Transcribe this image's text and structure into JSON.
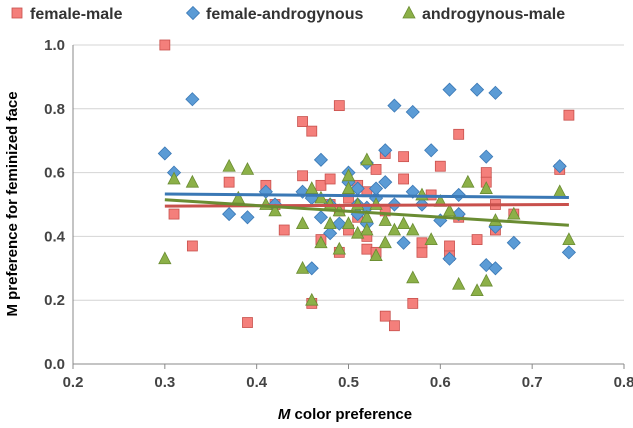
{
  "chart_data": {
    "type": "scatter",
    "title": "",
    "xlabel_italic": "M",
    "xlabel_rest": " color preference",
    "ylabel": "M preference for feminized face",
    "xlim": [
      0.2,
      0.8
    ],
    "ylim": [
      0.0,
      1.0
    ],
    "xticks": [
      "0.2",
      "0.3",
      "0.4",
      "0.5",
      "0.6",
      "0.7",
      "0.8"
    ],
    "yticks": [
      "0.0",
      "0.2",
      "0.4",
      "0.6",
      "0.8",
      "1.0"
    ],
    "legend_position": "top",
    "series": [
      {
        "name": "female-male",
        "color": "#f47f7b",
        "stroke": "#c8504c",
        "marker": "square",
        "trend": [
          0.495,
          0.5
        ],
        "points": [
          [
            0.3,
            1.0
          ],
          [
            0.31,
            0.47
          ],
          [
            0.33,
            0.37
          ],
          [
            0.37,
            0.57
          ],
          [
            0.39,
            0.13
          ],
          [
            0.41,
            0.56
          ],
          [
            0.42,
            0.5
          ],
          [
            0.43,
            0.42
          ],
          [
            0.45,
            0.76
          ],
          [
            0.45,
            0.59
          ],
          [
            0.46,
            0.73
          ],
          [
            0.46,
            0.19
          ],
          [
            0.47,
            0.56
          ],
          [
            0.47,
            0.39
          ],
          [
            0.48,
            0.58
          ],
          [
            0.48,
            0.5
          ],
          [
            0.49,
            0.81
          ],
          [
            0.49,
            0.48
          ],
          [
            0.49,
            0.35
          ],
          [
            0.5,
            0.52
          ],
          [
            0.5,
            0.42
          ],
          [
            0.51,
            0.56
          ],
          [
            0.51,
            0.46
          ],
          [
            0.52,
            0.54
          ],
          [
            0.52,
            0.4
          ],
          [
            0.52,
            0.36
          ],
          [
            0.53,
            0.61
          ],
          [
            0.53,
            0.35
          ],
          [
            0.54,
            0.66
          ],
          [
            0.54,
            0.15
          ],
          [
            0.54,
            0.48
          ],
          [
            0.55,
            0.12
          ],
          [
            0.56,
            0.58
          ],
          [
            0.56,
            0.65
          ],
          [
            0.57,
            0.19
          ],
          [
            0.58,
            0.35
          ],
          [
            0.58,
            0.38
          ],
          [
            0.59,
            0.53
          ],
          [
            0.6,
            0.62
          ],
          [
            0.61,
            0.34
          ],
          [
            0.61,
            0.37
          ],
          [
            0.62,
            0.72
          ],
          [
            0.62,
            0.46
          ],
          [
            0.64,
            0.39
          ],
          [
            0.65,
            0.6
          ],
          [
            0.65,
            0.57
          ],
          [
            0.66,
            0.42
          ],
          [
            0.66,
            0.5
          ],
          [
            0.68,
            0.47
          ],
          [
            0.73,
            0.61
          ],
          [
            0.74,
            0.78
          ]
        ]
      },
      {
        "name": "female-androgynous",
        "color": "#5b9bd5",
        "stroke": "#3a78b5",
        "marker": "diamond",
        "trend": [
          0.533,
          0.522
        ],
        "points": [
          [
            0.3,
            0.66
          ],
          [
            0.31,
            0.6
          ],
          [
            0.33,
            0.83
          ],
          [
            0.37,
            0.47
          ],
          [
            0.39,
            0.46
          ],
          [
            0.41,
            0.54
          ],
          [
            0.42,
            0.5
          ],
          [
            0.45,
            0.54
          ],
          [
            0.46,
            0.3
          ],
          [
            0.46,
            0.52
          ],
          [
            0.47,
            0.64
          ],
          [
            0.47,
            0.46
          ],
          [
            0.48,
            0.5
          ],
          [
            0.48,
            0.41
          ],
          [
            0.49,
            0.44
          ],
          [
            0.5,
            0.6
          ],
          [
            0.5,
            0.57
          ],
          [
            0.51,
            0.5
          ],
          [
            0.51,
            0.55
          ],
          [
            0.51,
            0.47
          ],
          [
            0.52,
            0.63
          ],
          [
            0.52,
            0.49
          ],
          [
            0.52,
            0.44
          ],
          [
            0.53,
            0.52
          ],
          [
            0.53,
            0.55
          ],
          [
            0.54,
            0.57
          ],
          [
            0.54,
            0.67
          ],
          [
            0.55,
            0.81
          ],
          [
            0.55,
            0.5
          ],
          [
            0.56,
            0.38
          ],
          [
            0.57,
            0.79
          ],
          [
            0.57,
            0.54
          ],
          [
            0.58,
            0.5
          ],
          [
            0.59,
            0.67
          ],
          [
            0.6,
            0.45
          ],
          [
            0.61,
            0.33
          ],
          [
            0.61,
            0.86
          ],
          [
            0.62,
            0.53
          ],
          [
            0.62,
            0.47
          ],
          [
            0.64,
            0.86
          ],
          [
            0.65,
            0.65
          ],
          [
            0.65,
            0.31
          ],
          [
            0.66,
            0.85
          ],
          [
            0.66,
            0.3
          ],
          [
            0.66,
            0.43
          ],
          [
            0.68,
            0.38
          ],
          [
            0.73,
            0.62
          ],
          [
            0.74,
            0.35
          ]
        ]
      },
      {
        "name": "androgynous-male",
        "color": "#8cb048",
        "stroke": "#6a8c32",
        "marker": "triangle",
        "trend": [
          0.515,
          0.435
        ],
        "points": [
          [
            0.3,
            0.33
          ],
          [
            0.31,
            0.58
          ],
          [
            0.33,
            0.57
          ],
          [
            0.37,
            0.62
          ],
          [
            0.38,
            0.52
          ],
          [
            0.39,
            0.61
          ],
          [
            0.41,
            0.5
          ],
          [
            0.42,
            0.48
          ],
          [
            0.45,
            0.3
          ],
          [
            0.45,
            0.44
          ],
          [
            0.46,
            0.2
          ],
          [
            0.46,
            0.55
          ],
          [
            0.47,
            0.52
          ],
          [
            0.47,
            0.38
          ],
          [
            0.48,
            0.44
          ],
          [
            0.48,
            0.5
          ],
          [
            0.49,
            0.48
          ],
          [
            0.49,
            0.36
          ],
          [
            0.5,
            0.59
          ],
          [
            0.5,
            0.55
          ],
          [
            0.5,
            0.44
          ],
          [
            0.51,
            0.5
          ],
          [
            0.51,
            0.41
          ],
          [
            0.52,
            0.46
          ],
          [
            0.52,
            0.64
          ],
          [
            0.52,
            0.42
          ],
          [
            0.53,
            0.34
          ],
          [
            0.53,
            0.5
          ],
          [
            0.54,
            0.38
          ],
          [
            0.54,
            0.45
          ],
          [
            0.55,
            0.42
          ],
          [
            0.56,
            0.44
          ],
          [
            0.57,
            0.27
          ],
          [
            0.57,
            0.42
          ],
          [
            0.58,
            0.53
          ],
          [
            0.59,
            0.39
          ],
          [
            0.6,
            0.51
          ],
          [
            0.61,
            0.48
          ],
          [
            0.62,
            0.25
          ],
          [
            0.63,
            0.57
          ],
          [
            0.64,
            0.23
          ],
          [
            0.65,
            0.55
          ],
          [
            0.65,
            0.26
          ],
          [
            0.66,
            0.45
          ],
          [
            0.68,
            0.47
          ],
          [
            0.73,
            0.54
          ],
          [
            0.74,
            0.39
          ]
        ]
      }
    ]
  }
}
